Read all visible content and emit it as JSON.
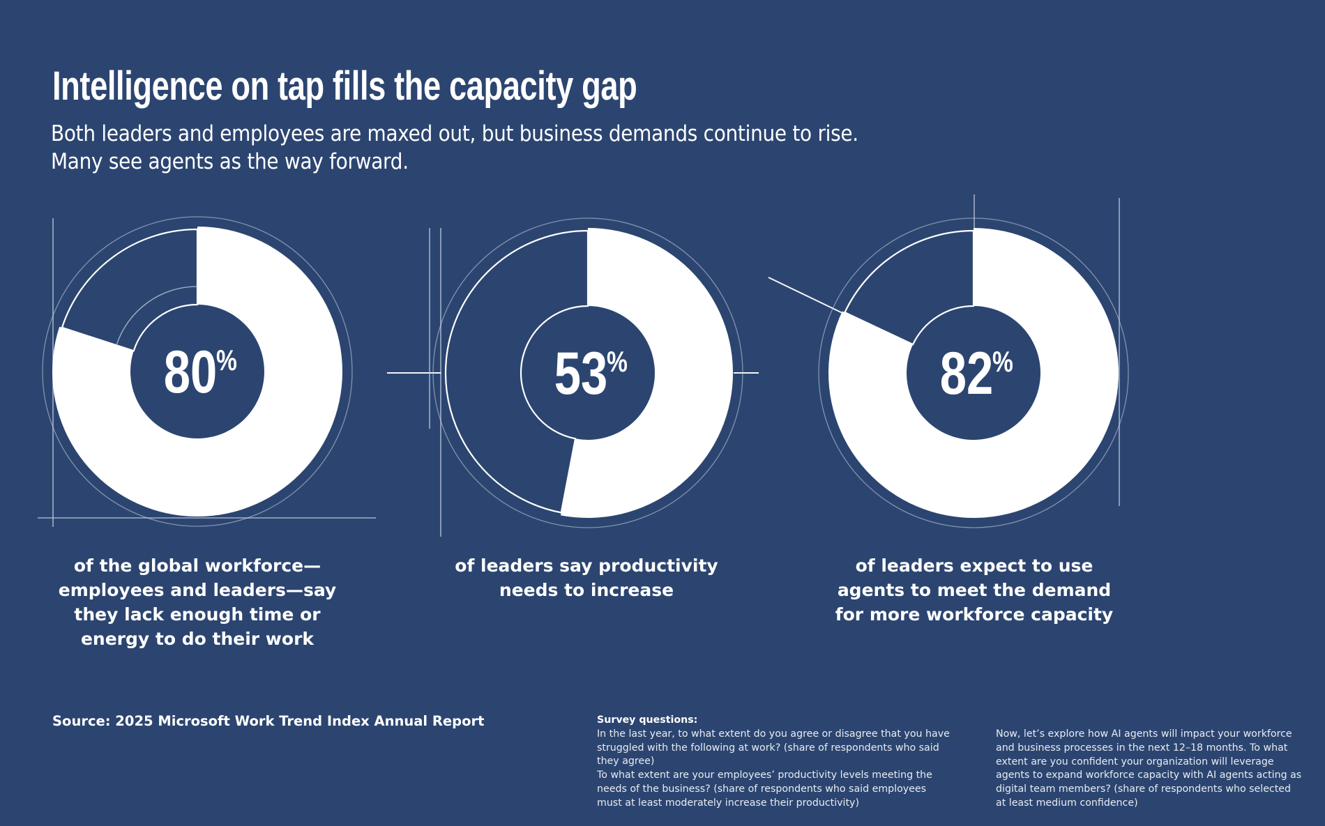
{
  "header": {
    "title": "Intelligence on tap fills the capacity gap",
    "subtitle_lines": [
      "Both leaders and employees are maxed out, but business demands continue to rise.",
      "Many see agents as the way forward."
    ]
  },
  "colors": {
    "background": "#2c4570",
    "ring_fill": "#ffffff",
    "guide_line": "#c9d3e3"
  },
  "chart_data": [
    {
      "type": "pie",
      "title": "80%",
      "values": [
        80,
        20
      ],
      "categories": [
        "share",
        "remainder"
      ],
      "value_label": "80",
      "unit": "%",
      "caption_lines": [
        "of the global workforce—",
        "employees and leaders—say",
        "they lack enough time or",
        "energy to do their work"
      ]
    },
    {
      "type": "pie",
      "title": "53%",
      "values": [
        53,
        47
      ],
      "categories": [
        "share",
        "remainder"
      ],
      "value_label": "53",
      "unit": "%",
      "caption_lines": [
        "of leaders say productivity",
        "needs to increase"
      ]
    },
    {
      "type": "pie",
      "title": "82%",
      "values": [
        82,
        18
      ],
      "categories": [
        "share",
        "remainder"
      ],
      "value_label": "82",
      "unit": "%",
      "caption_lines": [
        "of leaders expect to use",
        "agents to meet the demand",
        "for more workforce capacity"
      ]
    }
  ],
  "footer": {
    "source": "Source: 2025 Microsoft Work Trend Index Annual Report",
    "survey_heading": "Survey questions:",
    "survey_col1_lines": [
      "In the last year, to what extent do you agree or disagree that you have",
      "struggled with the following at work? (share of respondents who said",
      "they agree)",
      "To what extent are your employees’ productivity levels meeting the",
      "needs of the business? (share of respondents who said employees",
      "must at least moderately increase their productivity)"
    ],
    "survey_col2_lines": [
      "Now, let’s explore how AI agents will impact your workforce",
      "and business processes in the next 12–18 months. To what",
      "extent are you confident your organization will leverage",
      "agents to expand workforce capacity with AI agents acting as",
      "digital team members? (share of respondents who selected",
      "at least medium confidence)"
    ]
  }
}
